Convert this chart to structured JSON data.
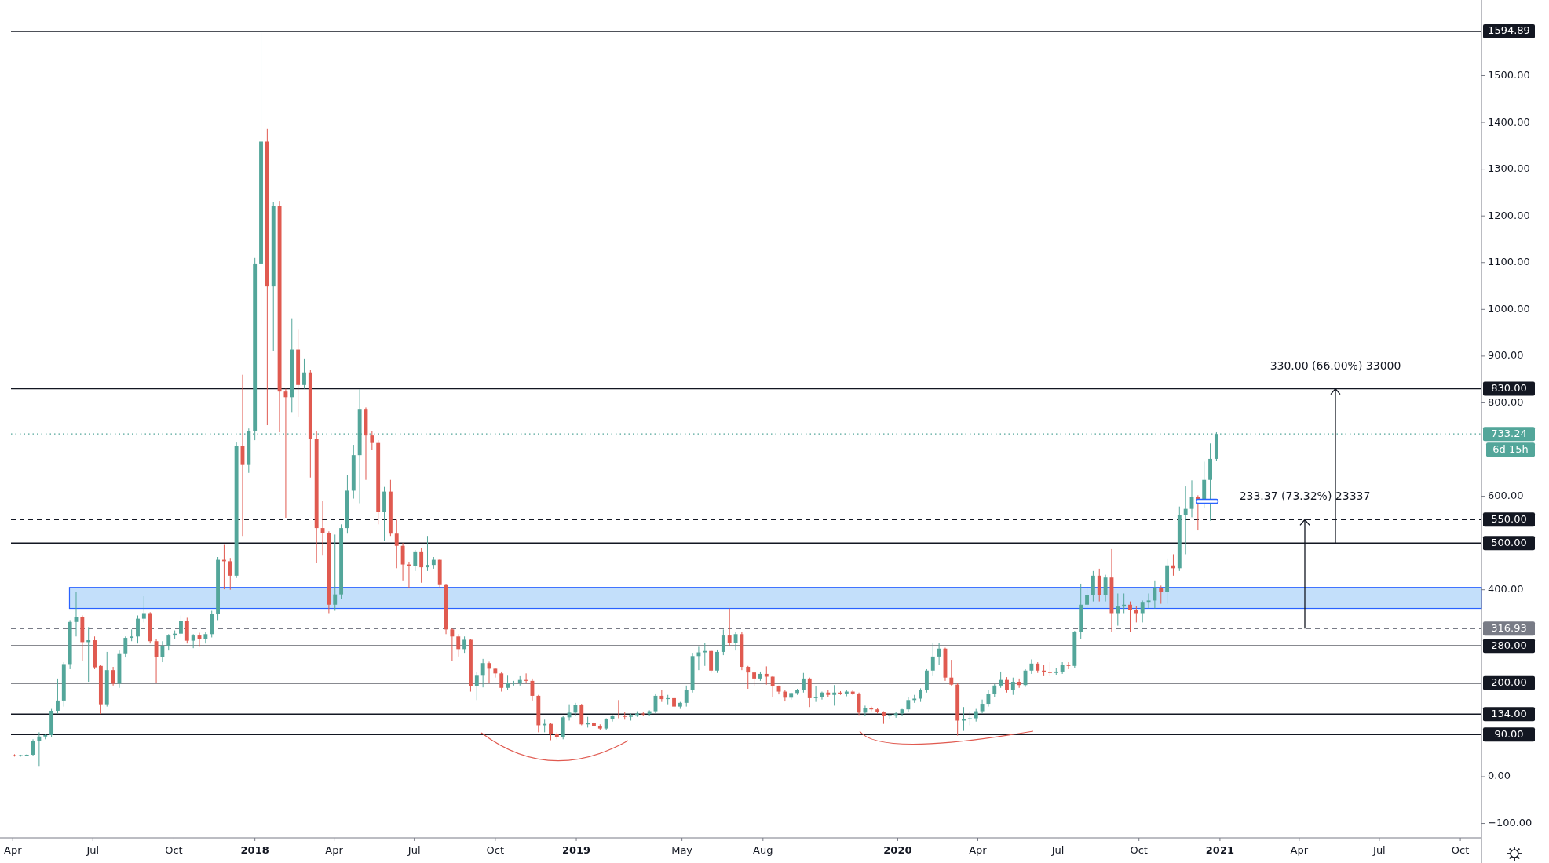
{
  "chart_data": {
    "type": "candlestick",
    "x": [
      "2017-04-03",
      "2017-04-10",
      "2017-04-17",
      "2017-04-24",
      "2017-05-01",
      "2017-05-08",
      "2017-05-15",
      "2017-05-22",
      "2017-05-29",
      "2017-06-05",
      "2017-06-12",
      "2017-06-19",
      "2017-06-26",
      "2017-07-03",
      "2017-07-10",
      "2017-07-17",
      "2017-07-24",
      "2017-07-31",
      "2017-08-07",
      "2017-08-14",
      "2017-08-21",
      "2017-08-28",
      "2017-09-04",
      "2017-09-11",
      "2017-09-18",
      "2017-09-25",
      "2017-10-02",
      "2017-10-09",
      "2017-10-16",
      "2017-10-23",
      "2017-10-30",
      "2017-11-06",
      "2017-11-13",
      "2017-11-20",
      "2017-11-27",
      "2017-12-04",
      "2017-12-11",
      "2017-12-18",
      "2017-12-25",
      "2018-01-01",
      "2018-01-08",
      "2018-01-15",
      "2018-01-22",
      "2018-01-29",
      "2018-02-05",
      "2018-02-12",
      "2018-02-19",
      "2018-02-26",
      "2018-03-05",
      "2018-03-12",
      "2018-03-19",
      "2018-03-26",
      "2018-04-02",
      "2018-04-09",
      "2018-04-16",
      "2018-04-23",
      "2018-04-30",
      "2018-05-07",
      "2018-05-14",
      "2018-05-21",
      "2018-05-28",
      "2018-06-04",
      "2018-06-11",
      "2018-06-18",
      "2018-06-25",
      "2018-07-02",
      "2018-07-09",
      "2018-07-16",
      "2018-07-23",
      "2018-07-30",
      "2018-08-06",
      "2018-08-13",
      "2018-08-20",
      "2018-08-27",
      "2018-09-03",
      "2018-09-10",
      "2018-09-17",
      "2018-09-24",
      "2018-10-01",
      "2018-10-08",
      "2018-10-15",
      "2018-10-22",
      "2018-10-29",
      "2018-11-05",
      "2018-11-12",
      "2018-11-19",
      "2018-11-26",
      "2018-12-03",
      "2018-12-10",
      "2018-12-17",
      "2018-12-24",
      "2018-12-31",
      "2019-01-07",
      "2019-01-14",
      "2019-01-21",
      "2019-01-28",
      "2019-02-04",
      "2019-02-11",
      "2019-02-18",
      "2019-02-25",
      "2019-03-04",
      "2019-03-11",
      "2019-03-18",
      "2019-03-25",
      "2019-04-01",
      "2019-04-08",
      "2019-04-15",
      "2019-04-22",
      "2019-04-29",
      "2019-05-06",
      "2019-05-13",
      "2019-05-20",
      "2019-05-27",
      "2019-06-03",
      "2019-06-10",
      "2019-06-17",
      "2019-06-24",
      "2019-07-01",
      "2019-07-08",
      "2019-07-15",
      "2019-07-22",
      "2019-07-29",
      "2019-08-05",
      "2019-08-12",
      "2019-08-19",
      "2019-08-26",
      "2019-09-02",
      "2019-09-09",
      "2019-09-16",
      "2019-09-23",
      "2019-09-30",
      "2019-10-07",
      "2019-10-14",
      "2019-10-21",
      "2019-10-28",
      "2019-11-04",
      "2019-11-11",
      "2019-11-18",
      "2019-11-25",
      "2019-12-02",
      "2019-12-09",
      "2019-12-16",
      "2019-12-23",
      "2019-12-30",
      "2020-01-06",
      "2020-01-13",
      "2020-01-20",
      "2020-01-27",
      "2020-02-03",
      "2020-02-10",
      "2020-02-17",
      "2020-02-24",
      "2020-03-02",
      "2020-03-09",
      "2020-03-16",
      "2020-03-23",
      "2020-03-30",
      "2020-04-06",
      "2020-04-13",
      "2020-04-20",
      "2020-04-27",
      "2020-05-04",
      "2020-05-11",
      "2020-05-18",
      "2020-05-25",
      "2020-06-01",
      "2020-06-08",
      "2020-06-15",
      "2020-06-22",
      "2020-06-29",
      "2020-07-06",
      "2020-07-13",
      "2020-07-20",
      "2020-07-27",
      "2020-08-03",
      "2020-08-10",
      "2020-08-17",
      "2020-08-24",
      "2020-08-31",
      "2020-09-07",
      "2020-09-14",
      "2020-09-21",
      "2020-09-28",
      "2020-10-05",
      "2020-10-12",
      "2020-10-19",
      "2020-10-26",
      "2020-11-02",
      "2020-11-09",
      "2020-11-16",
      "2020-11-23",
      "2020-11-30",
      "2020-12-07",
      "2020-12-14",
      "2020-12-21",
      "2020-12-28"
    ],
    "ohlc": [
      [
        46,
        48,
        43,
        44
      ],
      [
        44,
        47,
        43,
        46
      ],
      [
        46,
        48,
        44,
        47
      ],
      [
        47,
        80,
        44,
        77
      ],
      [
        77,
        95,
        23,
        86
      ],
      [
        86,
        92,
        80,
        89
      ],
      [
        89,
        145,
        85,
        141
      ],
      [
        141,
        210,
        135,
        163
      ],
      [
        163,
        245,
        150,
        241
      ],
      [
        241,
        335,
        230,
        331
      ],
      [
        331,
        395,
        300,
        341
      ],
      [
        341,
        345,
        248,
        288
      ],
      [
        288,
        320,
        203,
        292
      ],
      [
        292,
        300,
        230,
        234
      ],
      [
        237,
        240,
        134,
        155
      ],
      [
        155,
        267,
        150,
        228
      ],
      [
        228,
        235,
        195,
        199
      ],
      [
        199,
        270,
        190,
        264
      ],
      [
        264,
        300,
        255,
        297
      ],
      [
        297,
        315,
        290,
        300
      ],
      [
        300,
        345,
        285,
        338
      ],
      [
        338,
        386,
        330,
        350
      ],
      [
        350,
        352,
        285,
        290
      ],
      [
        290,
        295,
        200,
        256
      ],
      [
        256,
        290,
        245,
        279
      ],
      [
        279,
        305,
        270,
        302
      ],
      [
        302,
        313,
        295,
        306
      ],
      [
        306,
        345,
        298,
        333
      ],
      [
        333,
        340,
        285,
        291
      ],
      [
        291,
        305,
        275,
        302
      ],
      [
        302,
        308,
        278,
        295
      ],
      [
        295,
        310,
        285,
        305
      ],
      [
        305,
        355,
        298,
        349
      ],
      [
        349,
        470,
        335,
        464
      ],
      [
        464,
        496,
        401,
        461
      ],
      [
        461,
        468,
        400,
        430
      ],
      [
        430,
        715,
        425,
        707
      ],
      [
        707,
        860,
        515,
        667
      ],
      [
        667,
        745,
        650,
        739
      ],
      [
        739,
        1110,
        720,
        1098
      ],
      [
        1098,
        1594.89,
        968,
        1359
      ],
      [
        1359,
        1387,
        752,
        1049
      ],
      [
        1049,
        1230,
        910,
        1222
      ],
      [
        1222,
        1232,
        737,
        824
      ],
      [
        824,
        830,
        554,
        812
      ],
      [
        812,
        981,
        780,
        914
      ],
      [
        914,
        958,
        770,
        838
      ],
      [
        838,
        895,
        830,
        865
      ],
      [
        865,
        870,
        640,
        723
      ],
      [
        723,
        740,
        457,
        532
      ],
      [
        532,
        590,
        473,
        521
      ],
      [
        521,
        525,
        350,
        368
      ],
      [
        368,
        518,
        355,
        390
      ],
      [
        390,
        540,
        380,
        532
      ],
      [
        532,
        645,
        520,
        612
      ],
      [
        612,
        710,
        595,
        688
      ],
      [
        688,
        829,
        585,
        787
      ],
      [
        787,
        790,
        635,
        730
      ],
      [
        730,
        740,
        700,
        714
      ],
      [
        714,
        720,
        540,
        567
      ],
      [
        567,
        620,
        505,
        610
      ],
      [
        610,
        635,
        515,
        520
      ],
      [
        520,
        550,
        446,
        494
      ],
      [
        494,
        500,
        420,
        454
      ],
      [
        454,
        460,
        404,
        451
      ],
      [
        451,
        485,
        440,
        482
      ],
      [
        482,
        490,
        415,
        448
      ],
      [
        448,
        515,
        440,
        453
      ],
      [
        453,
        470,
        445,
        464
      ],
      [
        464,
        466,
        405,
        410
      ],
      [
        410,
        412,
        305,
        315
      ],
      [
        315,
        318,
        248,
        300
      ],
      [
        300,
        305,
        257,
        273
      ],
      [
        273,
        300,
        265,
        293
      ],
      [
        293,
        295,
        182,
        194
      ],
      [
        194,
        224,
        164,
        216
      ],
      [
        216,
        252,
        191,
        243
      ],
      [
        243,
        246,
        200,
        231
      ],
      [
        231,
        233,
        212,
        221
      ],
      [
        221,
        225,
        182,
        190
      ],
      [
        190,
        216,
        185,
        200
      ],
      [
        200,
        205,
        195,
        201
      ],
      [
        201,
        215,
        195,
        207
      ],
      [
        207,
        221,
        200,
        205
      ],
      [
        205,
        210,
        163,
        173
      ],
      [
        173,
        175,
        95,
        110
      ],
      [
        110,
        122,
        95,
        113
      ],
      [
        113,
        115,
        78,
        91
      ],
      [
        91,
        95,
        80,
        84
      ],
      [
        84,
        130,
        80,
        127
      ],
      [
        127,
        155,
        120,
        137
      ],
      [
        137,
        158,
        130,
        153
      ],
      [
        153,
        156,
        110,
        112
      ],
      [
        112,
        128,
        105,
        115
      ],
      [
        115,
        118,
        108,
        109
      ],
      [
        109,
        112,
        100,
        103
      ],
      [
        103,
        125,
        100,
        123
      ],
      [
        123,
        132,
        118,
        131
      ],
      [
        131,
        164,
        125,
        130
      ],
      [
        130,
        138,
        122,
        128
      ],
      [
        128,
        135,
        120,
        132
      ],
      [
        132,
        140,
        128,
        135
      ],
      [
        135,
        138,
        130,
        134
      ],
      [
        134,
        142,
        130,
        140
      ],
      [
        140,
        178,
        135,
        173
      ],
      [
        173,
        185,
        160,
        166
      ],
      [
        166,
        175,
        155,
        168
      ],
      [
        168,
        172,
        145,
        150
      ],
      [
        150,
        160,
        145,
        158
      ],
      [
        158,
        195,
        150,
        185
      ],
      [
        185,
        265,
        180,
        258
      ],
      [
        258,
        278,
        228,
        266
      ],
      [
        266,
        286,
        237,
        269
      ],
      [
        269,
        272,
        222,
        227
      ],
      [
        227,
        272,
        222,
        267
      ],
      [
        267,
        315,
        260,
        302
      ],
      [
        302,
        360,
        280,
        287
      ],
      [
        287,
        310,
        270,
        305
      ],
      [
        305,
        310,
        228,
        235
      ],
      [
        235,
        237,
        188,
        223
      ],
      [
        223,
        225,
        194,
        210
      ],
      [
        210,
        225,
        205,
        220
      ],
      [
        220,
        236,
        197,
        214
      ],
      [
        214,
        215,
        170,
        193
      ],
      [
        193,
        195,
        176,
        182
      ],
      [
        182,
        185,
        161,
        169
      ],
      [
        169,
        180,
        165,
        179
      ],
      [
        179,
        188,
        175,
        186
      ],
      [
        186,
        222,
        180,
        210
      ],
      [
        210,
        212,
        149,
        168
      ],
      [
        168,
        194,
        160,
        170
      ],
      [
        170,
        182,
        165,
        180
      ],
      [
        180,
        185,
        170,
        175
      ],
      [
        175,
        196,
        152,
        180
      ],
      [
        180,
        183,
        175,
        178
      ],
      [
        178,
        186,
        172,
        182
      ],
      [
        182,
        186,
        175,
        178
      ],
      [
        178,
        180,
        132,
        137
      ],
      [
        137,
        152,
        131,
        146
      ],
      [
        146,
        150,
        140,
        144
      ],
      [
        144,
        147,
        135,
        138
      ],
      [
        138,
        140,
        113,
        130
      ],
      [
        130,
        135,
        123,
        132
      ],
      [
        132,
        138,
        126,
        135
      ],
      [
        135,
        145,
        130,
        144
      ],
      [
        144,
        170,
        138,
        164
      ],
      [
        164,
        175,
        158,
        167
      ],
      [
        167,
        189,
        160,
        185
      ],
      [
        185,
        230,
        180,
        227
      ],
      [
        227,
        286,
        215,
        257
      ],
      [
        257,
        286,
        240,
        274
      ],
      [
        274,
        276,
        205,
        212
      ],
      [
        212,
        250,
        195,
        197
      ],
      [
        197,
        200,
        88,
        120
      ],
      [
        120,
        149,
        98,
        124
      ],
      [
        124,
        140,
        110,
        125
      ],
      [
        125,
        145,
        118,
        140
      ],
      [
        140,
        165,
        135,
        156
      ],
      [
        156,
        186,
        150,
        177
      ],
      [
        177,
        198,
        170,
        195
      ],
      [
        195,
        225,
        190,
        207
      ],
      [
        207,
        213,
        180,
        185
      ],
      [
        185,
        212,
        175,
        203
      ],
      [
        203,
        210,
        190,
        196
      ],
      [
        196,
        230,
        192,
        227
      ],
      [
        227,
        251,
        220,
        242
      ],
      [
        242,
        245,
        222,
        227
      ],
      [
        227,
        240,
        215,
        224
      ],
      [
        224,
        245,
        215,
        222
      ],
      [
        222,
        232,
        218,
        225
      ],
      [
        225,
        245,
        220,
        240
      ],
      [
        240,
        245,
        230,
        237
      ],
      [
        237,
        312,
        232,
        310
      ],
      [
        310,
        413,
        295,
        368
      ],
      [
        368,
        407,
        362,
        389
      ],
      [
        389,
        440,
        375,
        430
      ],
      [
        430,
        445,
        375,
        389
      ],
      [
        389,
        432,
        375,
        426
      ],
      [
        426,
        487,
        310,
        350
      ],
      [
        350,
        392,
        323,
        364
      ],
      [
        364,
        392,
        350,
        368
      ],
      [
        368,
        375,
        310,
        356
      ],
      [
        356,
        365,
        330,
        350
      ],
      [
        350,
        377,
        330,
        374
      ],
      [
        374,
        392,
        360,
        377
      ],
      [
        377,
        420,
        360,
        404
      ],
      [
        404,
        409,
        370,
        395
      ],
      [
        395,
        467,
        370,
        452
      ],
      [
        452,
        476,
        430,
        446
      ],
      [
        446,
        578,
        440,
        560
      ],
      [
        560,
        621,
        476,
        573
      ],
      [
        573,
        634,
        555,
        599
      ],
      [
        599,
        602,
        527,
        590
      ],
      [
        590,
        674,
        574,
        635
      ],
      [
        635,
        713,
        548,
        680
      ],
      [
        680,
        737,
        675,
        733.24
      ]
    ],
    "colors": [
      "#e05a50",
      "#53a69a",
      "#53a69a",
      "#53a69a",
      "#53a69a",
      "#53a69a",
      "#53a69a",
      "#53a69a",
      "#53a69a",
      "#53a69a",
      "#53a69a",
      "#e05a50",
      "#53a69a",
      "#e05a50",
      "#e05a50",
      "#53a69a",
      "#e05a50",
      "#53a69a",
      "#53a69a",
      "#53a69a",
      "#53a69a",
      "#53a69a",
      "#e05a50",
      "#e05a50",
      "#53a69a",
      "#53a69a",
      "#53a69a",
      "#53a69a",
      "#e05a50",
      "#53a69a",
      "#e05a50",
      "#53a69a",
      "#53a69a",
      "#53a69a",
      "#e05a50",
      "#e05a50",
      "#53a69a",
      "#e05a50",
      "#53a69a",
      "#53a69a",
      "#53a69a",
      "#e05a50",
      "#53a69a",
      "#e05a50",
      "#e05a50",
      "#53a69a",
      "#e05a50",
      "#53a69a",
      "#e05a50",
      "#e05a50",
      "#e05a50",
      "#e05a50",
      "#53a69a",
      "#53a69a",
      "#53a69a",
      "#53a69a",
      "#53a69a",
      "#e05a50",
      "#e05a50",
      "#e05a50",
      "#53a69a",
      "#e05a50",
      "#e05a50",
      "#e05a50",
      "#e05a50",
      "#53a69a",
      "#e05a50",
      "#53a69a",
      "#53a69a",
      "#e05a50",
      "#e05a50",
      "#e05a50",
      "#e05a50",
      "#53a69a",
      "#e05a50",
      "#53a69a",
      "#53a69a",
      "#e05a50",
      "#e05a50",
      "#e05a50",
      "#53a69a",
      "#53a69a",
      "#53a69a",
      "#e05a50",
      "#e05a50",
      "#e05a50",
      "#53a69a",
      "#e05a50",
      "#e05a50",
      "#53a69a",
      "#53a69a",
      "#53a69a",
      "#e05a50",
      "#53a69a",
      "#e05a50",
      "#e05a50",
      "#53a69a",
      "#53a69a",
      "#e05a50",
      "#e05a50",
      "#53a69a",
      "#53a69a",
      "#e05a50",
      "#53a69a",
      "#53a69a",
      "#e05a50",
      "#53a69a",
      "#e05a50",
      "#53a69a",
      "#53a69a",
      "#53a69a",
      "#53a69a",
      "#53a69a",
      "#e05a50",
      "#53a69a",
      "#53a69a",
      "#e05a50",
      "#53a69a",
      "#e05a50",
      "#e05a50",
      "#e05a50",
      "#53a69a",
      "#e05a50",
      "#e05a50",
      "#e05a50",
      "#e05a50",
      "#53a69a",
      "#53a69a",
      "#53a69a",
      "#e05a50",
      "#53a69a",
      "#53a69a",
      "#e05a50",
      "#53a69a",
      "#e05a50",
      "#53a69a",
      "#e05a50",
      "#e05a50",
      "#53a69a",
      "#e05a50",
      "#e05a50",
      "#e05a50",
      "#53a69a",
      "#53a69a",
      "#53a69a",
      "#53a69a",
      "#53a69a",
      "#53a69a",
      "#53a69a",
      "#53a69a",
      "#53a69a",
      "#e05a50",
      "#e05a50",
      "#e05a50",
      "#53a69a",
      "#53a69a",
      "#53a69a",
      "#53a69a",
      "#53a69a",
      "#53a69a",
      "#53a69a",
      "#e05a50",
      "#53a69a",
      "#e05a50",
      "#53a69a",
      "#53a69a",
      "#e05a50",
      "#e05a50",
      "#e05a50",
      "#53a69a",
      "#53a69a",
      "#e05a50",
      "#53a69a",
      "#53a69a",
      "#53a69a",
      "#53a69a",
      "#e05a50",
      "#53a69a",
      "#e05a50",
      "#53a69a",
      "#53a69a",
      "#e05a50",
      "#e05a50",
      "#53a69a",
      "#53a69a",
      "#53a69a",
      "#e05a50",
      "#53a69a",
      "#e05a50",
      "#53a69a",
      "#53a69a",
      "#53a69a",
      "#e05a50",
      "#53a69a",
      "#53a69a",
      "#53a69a"
    ],
    "xlim": [
      "2017-03-30",
      "2021-10-25"
    ],
    "xticks": [
      {
        "value": "2017-04-01",
        "label": "Apr"
      },
      {
        "value": "2017-07-01",
        "label": "Jul"
      },
      {
        "value": "2017-10-01",
        "label": "Oct"
      },
      {
        "value": "2018-01-01",
        "label": "2018"
      },
      {
        "value": "2018-04-01",
        "label": "Apr"
      },
      {
        "value": "2018-07-01",
        "label": "Jul"
      },
      {
        "value": "2018-10-01",
        "label": "Oct"
      },
      {
        "value": "2019-01-01",
        "label": "2019"
      },
      {
        "value": "2019-05-01",
        "label": "May"
      },
      {
        "value": "2019-08-01",
        "label": "Aug"
      },
      {
        "value": "2020-01-01",
        "label": "2020"
      },
      {
        "value": "2020-04-01",
        "label": "Apr"
      },
      {
        "value": "2020-07-01",
        "label": "Jul"
      },
      {
        "value": "2020-10-01",
        "label": "Oct"
      },
      {
        "value": "2021-01-01",
        "label": "2021"
      },
      {
        "value": "2021-04-01",
        "label": "Apr"
      },
      {
        "value": "2021-07-01",
        "label": "Jul"
      },
      {
        "value": "2021-10-01",
        "label": "Oct"
      }
    ],
    "ylim": [
      -131,
      1662
    ],
    "yticks": [
      {
        "value": -100,
        "label": "−100.00"
      },
      {
        "value": 0,
        "label": "0.00"
      },
      {
        "value": 400,
        "label": "400.00"
      },
      {
        "value": 600,
        "label": "600.00"
      },
      {
        "value": 800,
        "label": "800.00"
      },
      {
        "value": 900,
        "label": "900.00"
      },
      {
        "value": 1000,
        "label": "1000.00"
      },
      {
        "value": 1100,
        "label": "1100.00"
      },
      {
        "value": 1200,
        "label": "1200.00"
      },
      {
        "value": 1300,
        "label": "1300.00"
      },
      {
        "value": 1400,
        "label": "1400.00"
      },
      {
        "value": 1500,
        "label": "1500.00"
      }
    ],
    "ref_lines": [
      {
        "axis": "y",
        "value": 1594.89,
        "label": "1594.89",
        "color": "#131722",
        "line_style": "solid"
      },
      {
        "axis": "y",
        "value": 830,
        "label": "830.00",
        "color": "#131722",
        "line_style": "solid"
      },
      {
        "axis": "y",
        "value": 733.24,
        "label": "733.24",
        "color": "#53a69a",
        "line_style": "dotted"
      },
      {
        "axis": "y",
        "value": 550,
        "label": "550.00",
        "color": "#131722",
        "line_style": "dashed"
      },
      {
        "axis": "y",
        "value": 500,
        "label": "500.00",
        "color": "#131722",
        "line_style": "solid"
      },
      {
        "axis": "y",
        "value": 316.93,
        "label": "316.93",
        "color": "#787b86",
        "line_style": "dashed"
      },
      {
        "axis": "y",
        "value": 280,
        "label": "280.00",
        "color": "#131722",
        "line_style": "solid"
      },
      {
        "axis": "y",
        "value": 200,
        "label": "200.00",
        "color": "#131722",
        "line_style": "solid"
      },
      {
        "axis": "y",
        "value": 134,
        "label": "134.00",
        "color": "#131722",
        "line_style": "solid"
      },
      {
        "axis": "y",
        "value": 90,
        "label": "90.00",
        "color": "#131722",
        "line_style": "solid"
      }
    ],
    "bands": [
      {
        "axis": "y",
        "from": 360,
        "to": 405,
        "color": "#c3dffa"
      }
    ],
    "annotations": [
      "330.00 (66.00%) 33000",
      "233.37 (73.32%) 23337",
      "6d 15h"
    ]
  }
}
